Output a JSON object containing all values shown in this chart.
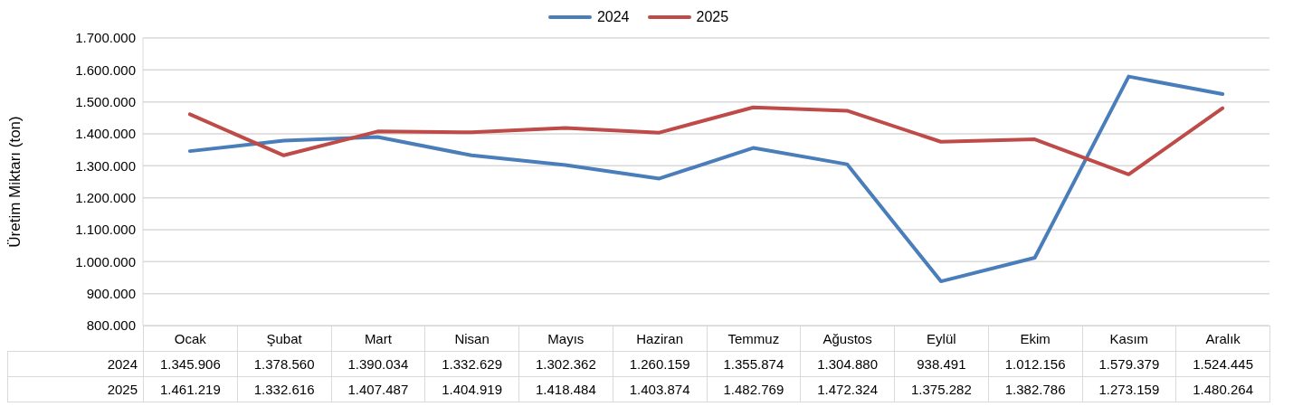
{
  "chart_data": {
    "type": "line",
    "ylabel": "Üretim Miktarı (ton)",
    "categories": [
      "Ocak",
      "Şubat",
      "Mart",
      "Nisan",
      "Mayıs",
      "Haziran",
      "Temmuz",
      "Ağustos",
      "Eylül",
      "Ekim",
      "Kasım",
      "Aralık"
    ],
    "series": [
      {
        "name": "2024",
        "color": "#4a7ebb",
        "values": [
          1345906,
          1378560,
          1390034,
          1332629,
          1302362,
          1260159,
          1355874,
          1304880,
          938491,
          1012156,
          1579379,
          1524445
        ],
        "value_labels": [
          "1.345.906",
          "1.378.560",
          "1.390.034",
          "1.332.629",
          "1.302.362",
          "1.260.159",
          "1.355.874",
          "1.304.880",
          "938.491",
          "1.012.156",
          "1.579.379",
          "1.524.445"
        ]
      },
      {
        "name": "2025",
        "color": "#be4b48",
        "values": [
          1461219,
          1332616,
          1407487,
          1404919,
          1418484,
          1403874,
          1482769,
          1472324,
          1375282,
          1382786,
          1273159,
          1480264
        ],
        "value_labels": [
          "1.461.219",
          "1.332.616",
          "1.407.487",
          "1.404.919",
          "1.418.484",
          "1.403.874",
          "1.482.769",
          "1.472.324",
          "1.375.282",
          "1.382.786",
          "1.273.159",
          "1.480.264"
        ]
      }
    ],
    "ylim": [
      800000,
      1700000
    ],
    "yticks": [
      {
        "value": 800000,
        "label": "800.000"
      },
      {
        "value": 900000,
        "label": "900.000"
      },
      {
        "value": 1000000,
        "label": "1.000.000"
      },
      {
        "value": 1100000,
        "label": "1.100.000"
      },
      {
        "value": 1200000,
        "label": "1.200.000"
      },
      {
        "value": 1300000,
        "label": "1.300.000"
      },
      {
        "value": 1400000,
        "label": "1.400.000"
      },
      {
        "value": 1500000,
        "label": "1.500.000"
      },
      {
        "value": 1600000,
        "label": "1.600.000"
      },
      {
        "value": 1700000,
        "label": "1.700.000"
      }
    ],
    "grid": "y",
    "legend": "top",
    "marker": "none",
    "line_style": "solid"
  }
}
